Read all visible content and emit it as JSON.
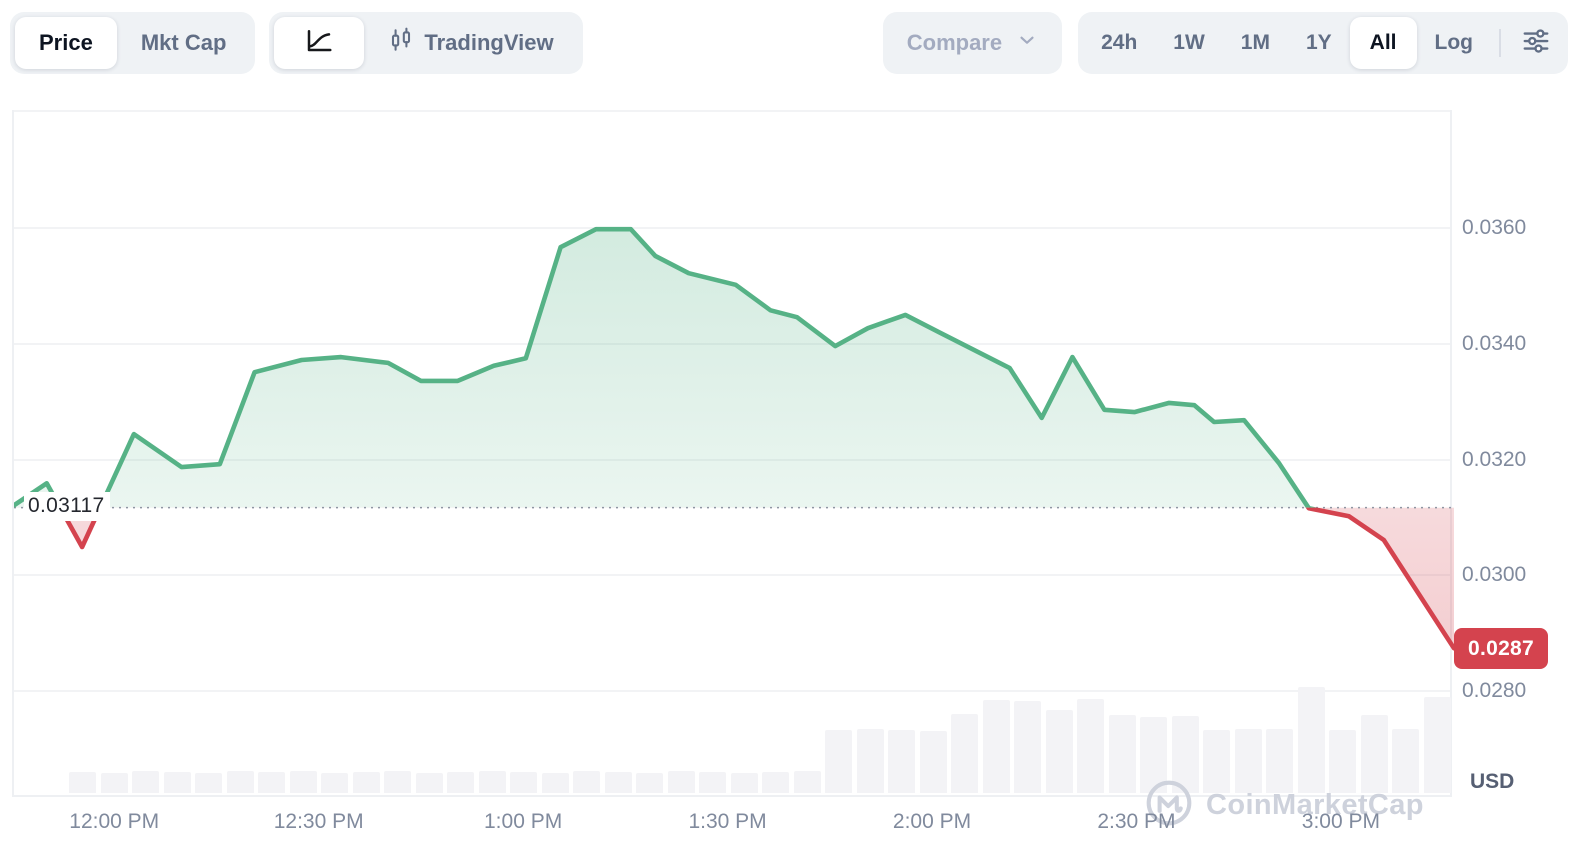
{
  "toolbar": {
    "metric_tabs": [
      {
        "label": "Price",
        "active": true
      },
      {
        "label": "Mkt Cap",
        "active": false
      }
    ],
    "chart_type": {
      "line_icon": "line-chart-icon",
      "tradingview_label": "TradingView"
    },
    "compare": {
      "label": "Compare"
    },
    "ranges": [
      {
        "label": "24h",
        "active": false
      },
      {
        "label": "1W",
        "active": false
      },
      {
        "label": "1M",
        "active": false
      },
      {
        "label": "1Y",
        "active": false
      },
      {
        "label": "All",
        "active": true
      },
      {
        "label": "Log",
        "active": false
      }
    ]
  },
  "watermark": {
    "label": "CoinMarketCap"
  },
  "chart_data": {
    "type": "area",
    "title": "CoinMarketCap intraday price chart (All range, linear scale)",
    "unit_label": "USD",
    "baseline_price": 0.03117,
    "baseline_label": "0.03117",
    "last_price": 0.02874,
    "last_price_label": "0.0287",
    "y_ticks": [
      0.036,
      0.034,
      0.032,
      0.03,
      0.028
    ],
    "y_tick_labels": [
      "0.0360",
      "0.0340",
      "0.0320",
      "0.0300",
      "0.0280"
    ],
    "y_axis_range": [
      0.02617,
      0.03804
    ],
    "x_ticks": [
      "12:00 PM",
      "12:30 PM",
      "1:00 PM",
      "1:30 PM",
      "2:00 PM",
      "2:30 PM",
      "3:00 PM"
    ],
    "x_tick_minutes": [
      15,
      45,
      75,
      105,
      135,
      165,
      195
    ],
    "x_total_minutes": 211.3,
    "grid": true,
    "legend": "none",
    "colors": {
      "up": "#56b286",
      "down": "#d4434e",
      "badge": "#d4434e"
    },
    "series": [
      {
        "name": "price",
        "points": [
          {
            "m": 0.0,
            "p": 0.03121
          },
          {
            "m": 4.8,
            "p": 0.03159
          },
          {
            "m": 10.0,
            "p": 0.03049
          },
          {
            "m": 17.6,
            "p": 0.03244
          },
          {
            "m": 24.6,
            "p": 0.03187
          },
          {
            "m": 30.2,
            "p": 0.03192
          },
          {
            "m": 35.3,
            "p": 0.03351
          },
          {
            "m": 42.2,
            "p": 0.03372
          },
          {
            "m": 48.0,
            "p": 0.03377
          },
          {
            "m": 54.9,
            "p": 0.03367
          },
          {
            "m": 59.7,
            "p": 0.03336
          },
          {
            "m": 65.1,
            "p": 0.03336
          },
          {
            "m": 70.4,
            "p": 0.03362
          },
          {
            "m": 75.1,
            "p": 0.03375
          },
          {
            "m": 80.2,
            "p": 0.03567
          },
          {
            "m": 85.4,
            "p": 0.03598
          },
          {
            "m": 90.5,
            "p": 0.03598
          },
          {
            "m": 94.1,
            "p": 0.03552
          },
          {
            "m": 99.0,
            "p": 0.03522
          },
          {
            "m": 105.9,
            "p": 0.03502
          },
          {
            "m": 111.0,
            "p": 0.03458
          },
          {
            "m": 114.9,
            "p": 0.03446
          },
          {
            "m": 120.5,
            "p": 0.03396
          },
          {
            "m": 125.3,
            "p": 0.03427
          },
          {
            "m": 130.8,
            "p": 0.0345
          },
          {
            "m": 135.9,
            "p": 0.03419
          },
          {
            "m": 146.1,
            "p": 0.03358
          },
          {
            "m": 150.8,
            "p": 0.03272
          },
          {
            "m": 155.3,
            "p": 0.03377
          },
          {
            "m": 160.0,
            "p": 0.03286
          },
          {
            "m": 164.4,
            "p": 0.03282
          },
          {
            "m": 169.5,
            "p": 0.03298
          },
          {
            "m": 173.2,
            "p": 0.03294
          },
          {
            "m": 176.1,
            "p": 0.03265
          },
          {
            "m": 180.5,
            "p": 0.03268
          },
          {
            "m": 185.6,
            "p": 0.03194
          },
          {
            "m": 190.0,
            "p": 0.03116
          },
          {
            "m": 195.9,
            "p": 0.03102
          },
          {
            "m": 201.0,
            "p": 0.03061
          },
          {
            "m": 211.3,
            "p": 0.02874
          }
        ]
      }
    ],
    "volume_bars_relative": [
      21,
      20,
      22,
      21,
      20,
      22,
      21,
      22,
      20,
      21,
      22,
      20,
      21,
      22,
      21,
      20,
      22,
      21,
      20,
      22,
      21,
      20,
      21,
      22,
      63,
      64,
      63,
      62,
      79,
      93,
      92,
      83,
      94,
      78,
      76,
      77,
      63,
      64,
      64,
      106,
      63,
      78,
      64,
      96
    ]
  }
}
